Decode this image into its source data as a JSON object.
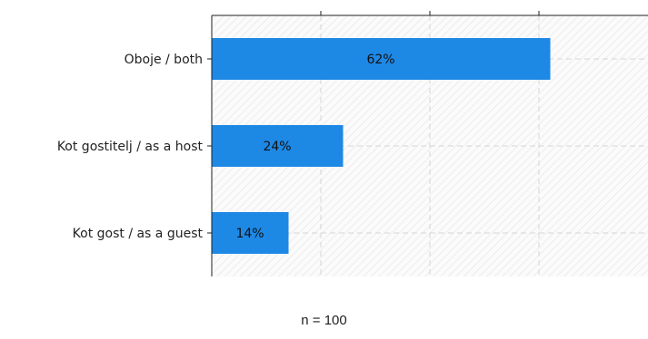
{
  "chart_data": {
    "type": "bar",
    "orientation": "horizontal",
    "categories": [
      "Oboje / both",
      "Kot gostitelj / as a host",
      "Kot gost / as a guest"
    ],
    "values": [
      62,
      24,
      14
    ],
    "value_labels": [
      "62%",
      "24%",
      "14%"
    ],
    "xlim": [
      0,
      80
    ],
    "x_ticks": [
      0,
      20,
      40,
      60,
      80
    ],
    "grid": true,
    "bar_color": "#1e88e5",
    "title": "",
    "xlabel": "",
    "ylabel": ""
  },
  "footnote": "n = 100"
}
